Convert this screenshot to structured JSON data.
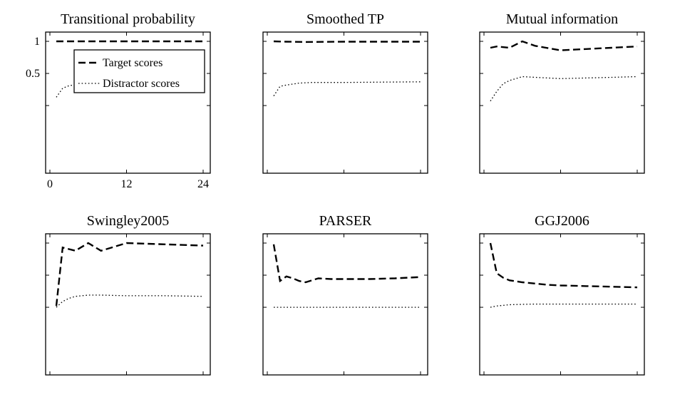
{
  "chart_data": [
    {
      "type": "line",
      "title": "Transitional probability",
      "xlim": [
        0,
        24
      ],
      "ylim": [
        0,
        1
      ],
      "xticks": [
        0,
        12,
        24
      ],
      "xticklabels": [
        "0",
        "12",
        "24"
      ],
      "yticks": [
        0.5,
        1
      ],
      "yticklabels": [
        "0.5",
        "1"
      ],
      "legend": {
        "position": "top-right"
      },
      "series": [
        {
          "name": "Target scores",
          "style": "dashed",
          "x": [
            1,
            24
          ],
          "y": [
            1.0,
            1.0
          ]
        },
        {
          "name": "Distractor scores",
          "style": "dotted",
          "x": [
            1,
            2,
            3,
            5,
            7,
            12,
            18,
            24
          ],
          "y": [
            0.13,
            0.27,
            0.31,
            0.34,
            0.355,
            0.355,
            0.36,
            0.37
          ]
        }
      ]
    },
    {
      "type": "line",
      "title": "Smoothed TP",
      "xlim": [
        0,
        24
      ],
      "ylim": [
        0,
        1
      ],
      "xticks": [
        0,
        12,
        24
      ],
      "yticks": [
        0.5,
        1
      ],
      "series": [
        {
          "name": "Target scores",
          "style": "dashed",
          "x": [
            1,
            3,
            6,
            12,
            24
          ],
          "y": [
            1.0,
            0.995,
            0.99,
            0.995,
            0.995
          ]
        },
        {
          "name": "Distractor scores",
          "style": "dotted",
          "x": [
            1,
            2,
            3,
            5,
            7,
            12,
            18,
            24
          ],
          "y": [
            0.15,
            0.3,
            0.32,
            0.35,
            0.36,
            0.36,
            0.365,
            0.37
          ]
        }
      ]
    },
    {
      "type": "line",
      "title": "Mutual information",
      "xlim": [
        0,
        24
      ],
      "ylim": [
        0,
        1
      ],
      "xticks": [
        0,
        12,
        24
      ],
      "yticks": [
        0.5,
        1
      ],
      "series": [
        {
          "name": "Target scores",
          "style": "dashed",
          "x": [
            1,
            2,
            4,
            6,
            8,
            12,
            16,
            20,
            24
          ],
          "y": [
            0.9,
            0.92,
            0.9,
            1.0,
            0.93,
            0.86,
            0.88,
            0.9,
            0.92
          ]
        },
        {
          "name": "Distractor scores",
          "style": "dotted",
          "x": [
            1,
            2,
            3,
            4,
            6,
            8,
            12,
            16,
            20,
            24
          ],
          "y": [
            0.07,
            0.22,
            0.34,
            0.39,
            0.45,
            0.44,
            0.42,
            0.43,
            0.44,
            0.45
          ]
        }
      ]
    },
    {
      "type": "line",
      "title": "Swingley2005",
      "xlim": [
        0,
        24
      ],
      "ylim": [
        0,
        1
      ],
      "xticks": [
        0,
        12,
        24
      ],
      "yticks": [
        0.5,
        1
      ],
      "series": [
        {
          "name": "Target scores",
          "style": "dashed",
          "x": [
            1,
            2,
            4,
            6,
            8,
            12,
            18,
            24
          ],
          "y": [
            0.02,
            0.93,
            0.88,
            1.0,
            0.88,
            1.0,
            0.98,
            0.96
          ]
        },
        {
          "name": "Distractor scores",
          "style": "dotted",
          "x": [
            1,
            2,
            3,
            4,
            6,
            8,
            12,
            18,
            24
          ],
          "y": [
            0.0,
            0.09,
            0.14,
            0.17,
            0.19,
            0.19,
            0.18,
            0.18,
            0.17
          ]
        }
      ]
    },
    {
      "type": "line",
      "title": "PARSER",
      "xlim": [
        0,
        24
      ],
      "ylim": [
        0,
        1
      ],
      "xticks": [
        0,
        12,
        24
      ],
      "yticks": [
        0.5,
        1
      ],
      "series": [
        {
          "name": "Target scores",
          "style": "dashed",
          "x": [
            1,
            2,
            3,
            4,
            5,
            6,
            8,
            10,
            12,
            16,
            20,
            24
          ],
          "y": [
            0.98,
            0.41,
            0.48,
            0.45,
            0.41,
            0.39,
            0.45,
            0.44,
            0.44,
            0.44,
            0.45,
            0.47
          ]
        },
        {
          "name": "Distractor scores",
          "style": "dotted",
          "x": [
            1,
            24
          ],
          "y": [
            0.0,
            0.0
          ]
        }
      ]
    },
    {
      "type": "line",
      "title": "GGJ2006",
      "xlim": [
        0,
        24
      ],
      "ylim": [
        0,
        1
      ],
      "xticks": [
        0,
        12,
        24
      ],
      "yticks": [
        0.5,
        1
      ],
      "series": [
        {
          "name": "Target scores",
          "style": "dashed",
          "x": [
            1,
            2,
            3,
            4,
            6,
            8,
            10,
            12,
            16,
            20,
            24
          ],
          "y": [
            1.0,
            0.53,
            0.46,
            0.42,
            0.39,
            0.37,
            0.35,
            0.34,
            0.33,
            0.32,
            0.31
          ]
        },
        {
          "name": "Distractor scores",
          "style": "dotted",
          "x": [
            1,
            2,
            3,
            4,
            6,
            8,
            12,
            18,
            24
          ],
          "y": [
            0.0,
            0.02,
            0.03,
            0.04,
            0.045,
            0.05,
            0.05,
            0.05,
            0.05
          ]
        }
      ]
    }
  ]
}
